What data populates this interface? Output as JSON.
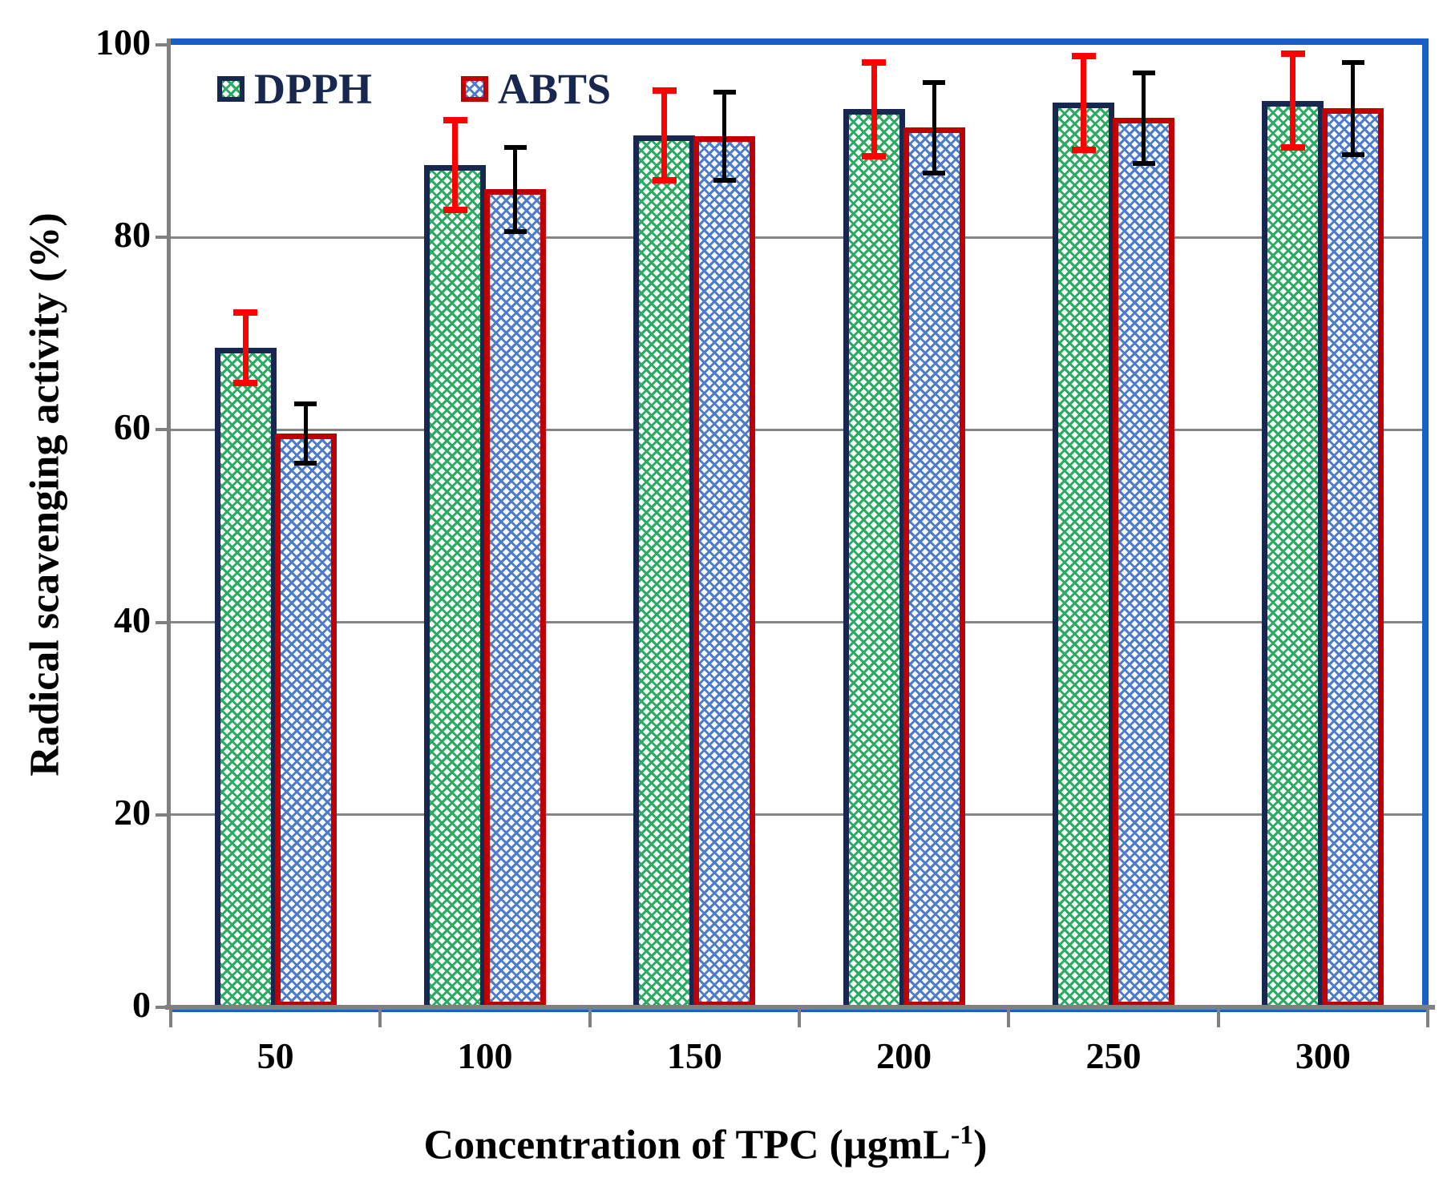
{
  "chart_data": {
    "type": "bar",
    "categories": [
      "50",
      "100",
      "150",
      "200",
      "250",
      "300"
    ],
    "series": [
      {
        "name": "DPPH",
        "values": [
          68.5,
          87.5,
          90.6,
          93.3,
          94.0,
          94.2
        ],
        "errors": [
          3.5,
          4.5,
          4.5,
          4.7,
          4.7,
          4.7
        ],
        "fill_color": "#2aab61",
        "border_color": "#182750",
        "error_color": "#ff0000"
      },
      {
        "name": "ABTS",
        "values": [
          59.6,
          85.0,
          90.5,
          91.4,
          92.4,
          93.4
        ],
        "errors": [
          3.0,
          4.3,
          4.5,
          4.6,
          4.6,
          4.7
        ],
        "fill_color": "#4d7ccc",
        "border_color": "#c00000",
        "error_color": "#000000"
      }
    ],
    "ylabel": "Radical scavenging activity (%)",
    "xlabel_prefix": "Concentration of TPC (µgmL",
    "xlabel_sup": "-1",
    "xlabel_suffix": ")",
    "ylim": [
      0,
      100
    ],
    "yticks": [
      0,
      20,
      40,
      60,
      80,
      100
    ],
    "grid": "horizontal-major",
    "legend_position": "top-left-inside",
    "frame_color": "#1a5fc8",
    "axis_color": "#808080",
    "grid_color": "#858585",
    "tick_label_color": "#000000",
    "legend_text_color": "#182750"
  }
}
